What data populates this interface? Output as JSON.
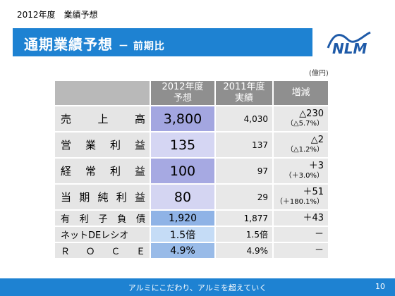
{
  "header": {
    "top_label": "2012年度　業績予想"
  },
  "title": {
    "main": "通期業績予想",
    "sub": "－ 前期比"
  },
  "logo": {
    "text": "NLM",
    "color": "#1e5aa8"
  },
  "unit": "(億円)",
  "table": {
    "headers": [
      "2012年度\n予想",
      "2011年度\n実績",
      "増減"
    ],
    "rows": [
      {
        "label": [
          "売",
          "上",
          "高"
        ],
        "forecast": "3,800",
        "actual": "4,030",
        "diff": "△230",
        "diff_pct": "（△5.7%）"
      },
      {
        "label": [
          "営",
          "業",
          "利",
          "益"
        ],
        "forecast": "135",
        "actual": "137",
        "diff": "△2",
        "diff_pct": "（△1.2%）"
      },
      {
        "label": [
          "経",
          "常",
          "利",
          "益"
        ],
        "forecast": "100",
        "actual": "97",
        "diff": "＋3",
        "diff_pct": "（＋3.0%）"
      },
      {
        "label": [
          "当",
          "期",
          "純",
          "利",
          "益"
        ],
        "forecast": "80",
        "actual": "29",
        "diff": "＋51",
        "diff_pct": "（＋180.1%）"
      },
      {
        "label": [
          "有",
          "利",
          "子",
          "負",
          "債"
        ],
        "forecast": "1,920",
        "actual": "1,877",
        "diff": "＋43",
        "diff_pct": ""
      },
      {
        "label": [
          "ネットDEレシオ"
        ],
        "forecast": "1.5倍",
        "actual": "1.5倍",
        "diff": "－",
        "diff_pct": ""
      },
      {
        "label": [
          "Ｒ",
          "Ｏ",
          "Ｃ",
          "Ｅ"
        ],
        "forecast": "4.9%",
        "actual": "4.9%",
        "diff": "－",
        "diff_pct": ""
      }
    ]
  },
  "footer": {
    "slogan": "アルミにこだわり、アルミを超えていく",
    "page": "10"
  },
  "colors": {
    "accent": "#1e82d2",
    "header_gray": "#8f8f8f"
  }
}
